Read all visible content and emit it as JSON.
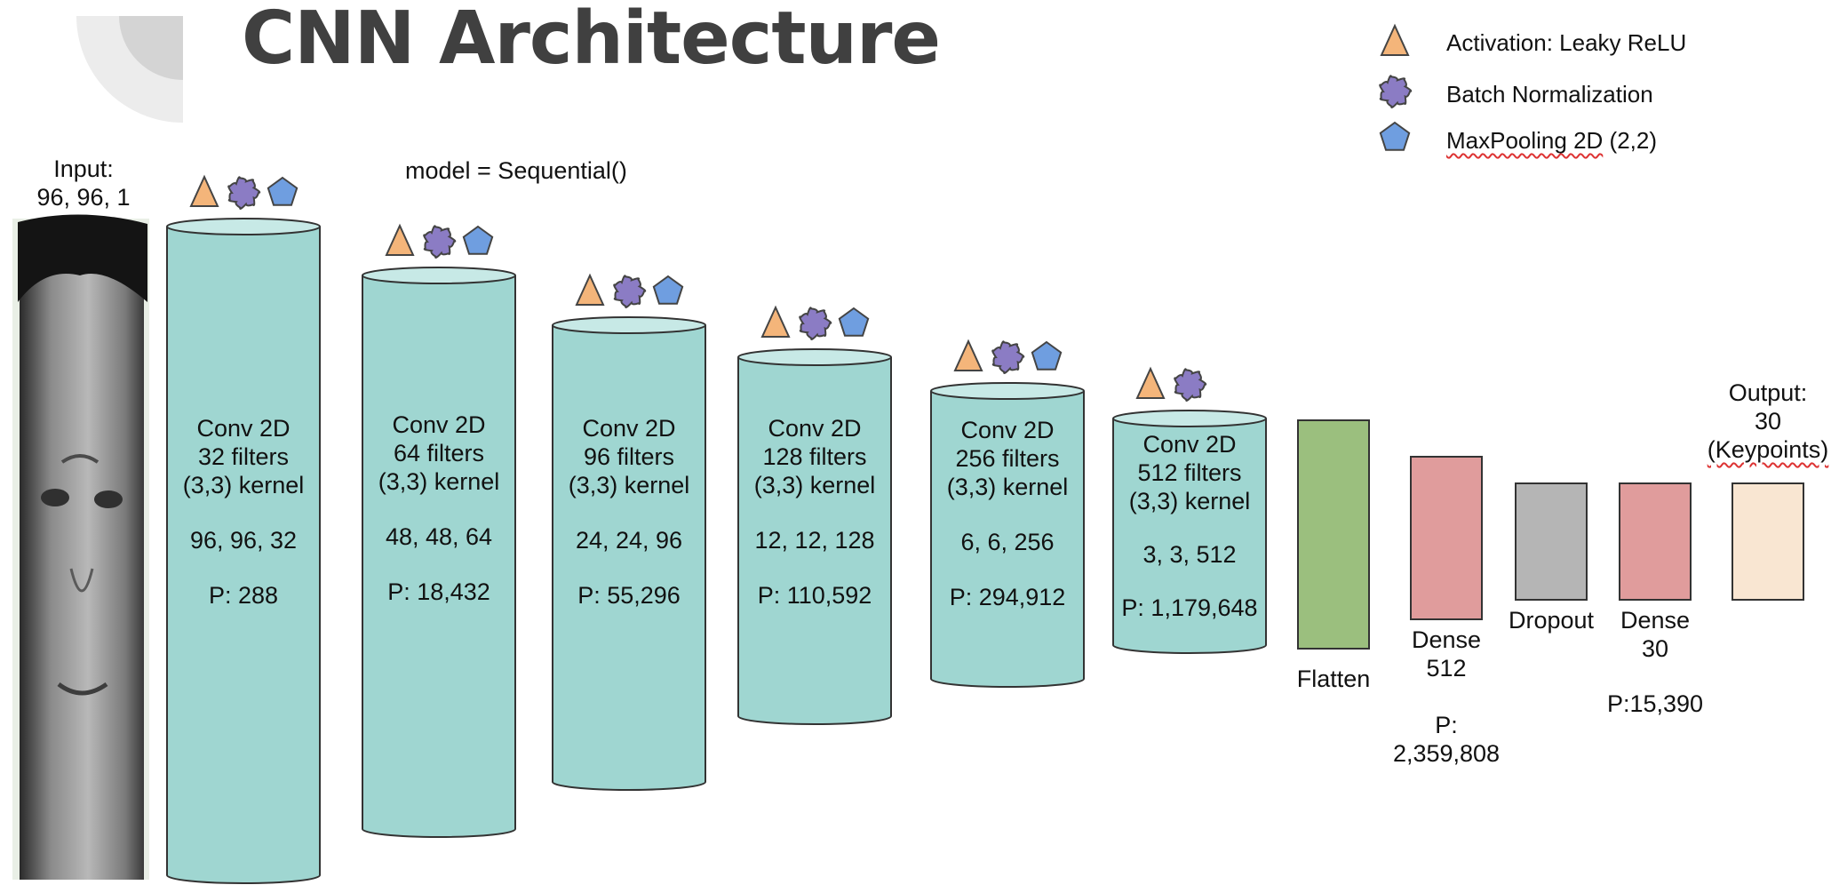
{
  "title": "CNN Architecture",
  "code_label": "model = Sequential()",
  "input": {
    "label_line1": "Input:",
    "label_line2": "96, 96, 1"
  },
  "legend": {
    "items": [
      {
        "icon": "triangle-icon",
        "label": "Activation: Leaky ReLU",
        "color": "#f4b57a"
      },
      {
        "icon": "cloud-blob-icon",
        "label": "Batch Normalization",
        "color": "#8b7cc4"
      },
      {
        "icon": "pentagon-icon",
        "label": "MaxPooling 2D (2,2)",
        "label_squiggly": "MaxPooling 2D",
        "label_rest": " (2,2)",
        "color": "#6f9ee0"
      }
    ]
  },
  "conv_layers": [
    {
      "l1": "Conv 2D",
      "l2": "32 filters",
      "l3": "(3,3) kernel",
      "shape": "96, 96, 32",
      "params": "P: 288",
      "icons": [
        "triangle-icon",
        "cloud-blob-icon",
        "pentagon-icon"
      ]
    },
    {
      "l1": "Conv 2D",
      "l2": "64 filters",
      "l3": "(3,3) kernel",
      "shape": "48, 48, 64",
      "params": "P: 18,432",
      "icons": [
        "triangle-icon",
        "cloud-blob-icon",
        "pentagon-icon"
      ]
    },
    {
      "l1": "Conv 2D",
      "l2": "96 filters",
      "l3": "(3,3) kernel",
      "shape": "24, 24, 96",
      "params": "P: 55,296",
      "icons": [
        "triangle-icon",
        "cloud-blob-icon",
        "pentagon-icon"
      ]
    },
    {
      "l1": "Conv 2D",
      "l2": "128 filters",
      "l3": "(3,3) kernel",
      "shape": "12, 12, 128",
      "params": "P: 110,592",
      "icons": [
        "triangle-icon",
        "cloud-blob-icon",
        "pentagon-icon"
      ]
    },
    {
      "l1": "Conv 2D",
      "l2": "256 filters",
      "l3": "(3,3) kernel",
      "shape": "6, 6, 256",
      "params": "P: 294,912",
      "icons": [
        "triangle-icon",
        "cloud-blob-icon",
        "pentagon-icon"
      ]
    },
    {
      "l1": "Conv 2D",
      "l2": "512 filters",
      "l3": "(3,3) kernel",
      "shape": "3, 3, 512",
      "params": "P: 1,179,648",
      "icons": [
        "triangle-icon",
        "cloud-blob-icon"
      ]
    }
  ],
  "flatten": {
    "label": "Flatten",
    "color": "#9bbf7e"
  },
  "dense512": {
    "label_line1": "Dense",
    "label_line2": "512",
    "params_line1": "P:",
    "params_line2": "2,359,808",
    "color": "#e09c9c"
  },
  "dropout": {
    "label": "Dropout",
    "color": "#b5b5b5"
  },
  "dense30": {
    "label_line1": "Dense",
    "label_line2": "30",
    "params": "P:15,390",
    "color": "#e09c9c"
  },
  "output": {
    "label_line1": "Output:",
    "label_line2": "30",
    "label_line3": "(Keypoints)",
    "color": "#f9e6d2"
  },
  "colors": {
    "cylinder": "#9fd6d1",
    "cylinder_top": "#c7e9e6",
    "stroke": "#333333",
    "title": "#404040"
  }
}
